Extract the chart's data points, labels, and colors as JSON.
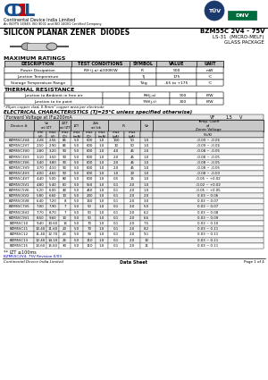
{
  "title_main": "SILICON PLANAR ZENER  DIODES",
  "part_range": "BZM55C 2V4 - 75V",
  "package": "LS-31  (MICRO-MELF)\nGLASS PACKAGE",
  "company_name": "Continental Device India Limited",
  "company_sub": "An ISO/TS 16949, ISO 9001 and ISO 14001 Certified Company",
  "max_ratings_title": "MAXIMUM RATINGS",
  "max_ratings_headers": [
    "DESCRIPTION",
    "TEST CONDITIONS",
    "SYMBOL",
    "VALUE",
    "UNIT"
  ],
  "max_ratings_rows": [
    [
      "Power Dissipation",
      "Rθ (j-a) ≤300K/W",
      "P₀",
      "500",
      "mW"
    ],
    [
      "Junction Temperature",
      "",
      "Tj",
      "175",
      "°C"
    ],
    [
      "Storage Temperature Range",
      "",
      "Tstg",
      "-65 to +175",
      "°C"
    ]
  ],
  "thermal_title": "THERMAL RESISTANCE",
  "thermal_rows": [
    [
      "Junction to Ambient in free air",
      "",
      "Rθ(j-a)",
      "500",
      "K/W"
    ],
    [
      "Junction to tie point",
      "",
      "*Rθ(j-t)",
      "300",
      "K/W"
    ]
  ],
  "copper_note": "*35μm copper clad, 0.9mm² copper area per electrode",
  "elec_title": "ELECTRICAL CHARACTERISTICS (Tj=25°C unless specified otherwise)",
  "fwd_voltage": "Forward Voltage at IF≤200mA",
  "fwd_voltage_val": "VF",
  "fwd_voltage_num": "1.5",
  "fwd_voltage_unit": "V",
  "table_rows": [
    [
      "BZM55C2V4",
      "2.28",
      "2.56",
      "85",
      "5.0",
      "600",
      "1.0",
      "100",
      "50",
      "1.0",
      "-0.09 ~ -0.06"
    ],
    [
      "BZM55C2V7",
      "2.50",
      "2.90",
      "85",
      "5.0",
      "600",
      "1.0",
      "10",
      "50",
      "1.0",
      "-0.09 ~ -0.06"
    ],
    [
      "BZM55C3V0",
      "2.80",
      "3.20",
      "90",
      "5.0",
      "600",
      "1.0",
      "4.0",
      "45",
      "1.0",
      "-0.08 ~ -0.05"
    ],
    [
      "BZM55C3V3",
      "3.10",
      "3.50",
      "90",
      "5.0",
      "600",
      "1.0",
      "2.0",
      "45",
      "1.0",
      "-0.08 ~ -0.05"
    ],
    [
      "BZM55C3V6",
      "3.40",
      "3.80",
      "90",
      "5.0",
      "600",
      "1.0",
      "2.0",
      "45",
      "1.0",
      "-0.08 ~ -0.05"
    ],
    [
      "BZM55C3V9",
      "3.70",
      "4.10",
      "90",
      "5.0",
      "600",
      "1.0",
      "2.0",
      "45",
      "1.0",
      "-0.08 ~ -0.05"
    ],
    [
      "BZM55C4V3",
      "4.00",
      "4.60",
      "90",
      "5.0",
      "600",
      "1.0",
      "1.0",
      "20",
      "1.0",
      "-0.08 ~ -0.03"
    ],
    [
      "BZM55C4V7",
      "4.40",
      "5.00",
      "80",
      "5.0",
      "600",
      "1.0",
      "0.5",
      "15",
      "1.0",
      "-0.05 ~ +0.02"
    ],
    [
      "BZM55C5V1",
      "4.80",
      "5.40",
      "60",
      "5.0",
      "550",
      "1.0",
      "0.1",
      "2.0",
      "1.0",
      "-0.02 ~ +0.02"
    ],
    [
      "BZM55C5V6",
      "5.20",
      "6.00",
      "40",
      "5.0",
      "450",
      "1.0",
      "0.1",
      "2.0",
      "1.0",
      "-0.05 ~ +0.05"
    ],
    [
      "BZM55C6V2",
      "5.80",
      "6.60",
      "10",
      "5.0",
      "200",
      "1.0",
      "0.1",
      "2.0",
      "2.0",
      "0.03 ~ 0.06"
    ],
    [
      "BZM55C6V8",
      "6.40",
      "7.20",
      "8",
      "5.0",
      "150",
      "1.0",
      "0.1",
      "2.0",
      "3.0",
      "0.03 ~ 0.07"
    ],
    [
      "BZM55C7V5",
      "7.00",
      "7.90",
      "7",
      "5.0",
      "50",
      "1.0",
      "0.1",
      "2.0",
      "5.0",
      "0.03 ~ 0.07"
    ],
    [
      "BZM55C8V2",
      "7.70",
      "8.70",
      "7",
      "5.0",
      "50",
      "1.0",
      "0.1",
      "2.0",
      "6.2",
      "0.03 ~ 0.08"
    ],
    [
      "BZM55C9V1",
      "8.50",
      "9.60",
      "10",
      "5.0",
      "50",
      "1.0",
      "0.1",
      "2.0",
      "6.6",
      "0.03 ~ 0.09"
    ],
    [
      "BZM55C10",
      "9.40",
      "10.60",
      "15",
      "5.0",
      "70",
      "1.0",
      "0.1",
      "2.0",
      "7.5",
      "0.03 ~ 0.10"
    ],
    [
      "BZM55C11",
      "10.40",
      "11.60",
      "20",
      "5.0",
      "70",
      "1.0",
      "0.1",
      "2.0",
      "8.2",
      "0.03 ~ 0.11"
    ],
    [
      "BZM55C12",
      "11.40",
      "12.70",
      "20",
      "5.0",
      "90",
      "1.0",
      "0.1",
      "2.0",
      "9.1",
      "0.03 ~ 0.11"
    ],
    [
      "BZM55C13",
      "12.40",
      "14.10",
      "26",
      "5.0",
      "110",
      "1.0",
      "0.1",
      "2.0",
      "10",
      "0.03 ~ 0.11"
    ],
    [
      "BZM55C15",
      "13.60",
      "15.60",
      "30",
      "5.0",
      "110",
      "1.0",
      "0.1",
      "2.0",
      "11",
      "0.03 ~ 0.11"
    ]
  ],
  "footnote": "** IZT ≤100ms",
  "footnote2": "BZM55C2V4, 75V Revision:0/03",
  "footer_company": "Continental Device India Limited",
  "footer_center": "Data Sheet",
  "footer_right": "Page 1 of 4",
  "bg_color": "#ffffff"
}
